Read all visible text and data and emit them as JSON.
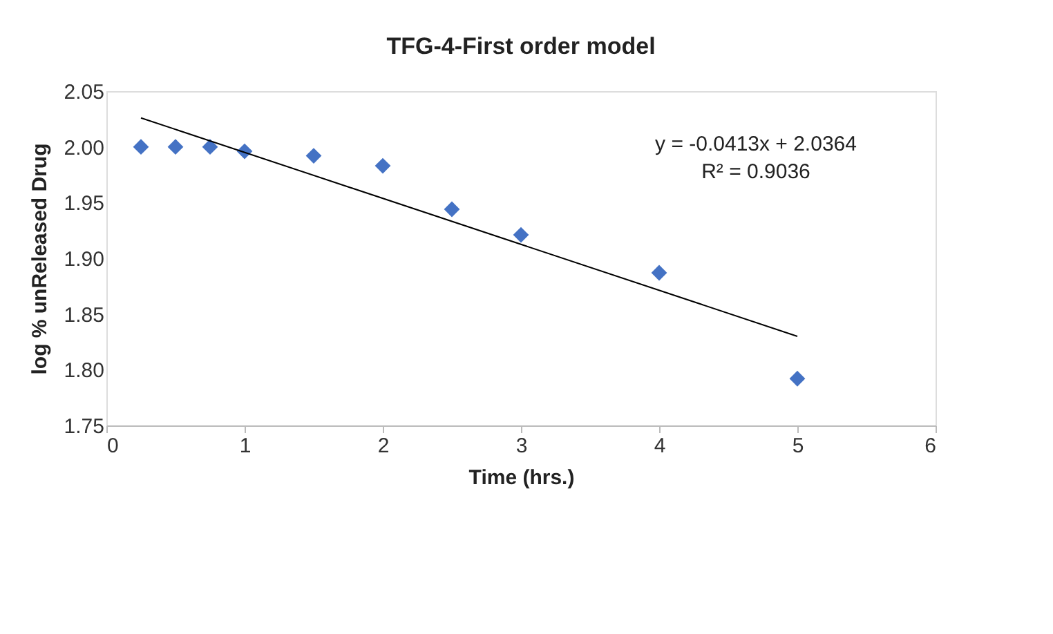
{
  "chart_data": {
    "type": "scatter",
    "title": "TFG-4-First order model",
    "xlabel": "Time (hrs.)",
    "ylabel": "log % unReleased Drug",
    "x": [
      0.25,
      0.5,
      0.75,
      1,
      1.5,
      2,
      2.5,
      3,
      4,
      5
    ],
    "series": [
      {
        "color": "#4472c4",
        "marker": "diamond",
        "values": [
          2.0,
          2.0,
          2.0,
          1.996,
          1.992,
          1.983,
          1.944,
          1.921,
          1.887,
          1.792
        ]
      },
      {
        "type": "line",
        "color": "#000000",
        "marker": "none",
        "x": [
          0.25,
          5
        ],
        "values": [
          2.026,
          1.83
        ]
      }
    ],
    "xlim": [
      0,
      6
    ],
    "xticks": [
      0,
      1,
      2,
      3,
      4,
      5,
      6
    ],
    "ylim": [
      1.75,
      2.05
    ],
    "yticks": [
      {
        "value": 1.75,
        "label": "1.75"
      },
      {
        "value": 1.8,
        "label": "1.80"
      },
      {
        "value": 1.85,
        "label": "1.85"
      },
      {
        "value": 1.9,
        "label": "1.90"
      },
      {
        "value": 1.95,
        "label": "1.95"
      },
      {
        "value": 2.0,
        "label": "2.00"
      },
      {
        "value": 2.05,
        "label": "2.05"
      }
    ],
    "annotations": [
      "y = -0.0413x + 2.0364",
      "R² = 0.9036"
    ],
    "grid": false
  }
}
